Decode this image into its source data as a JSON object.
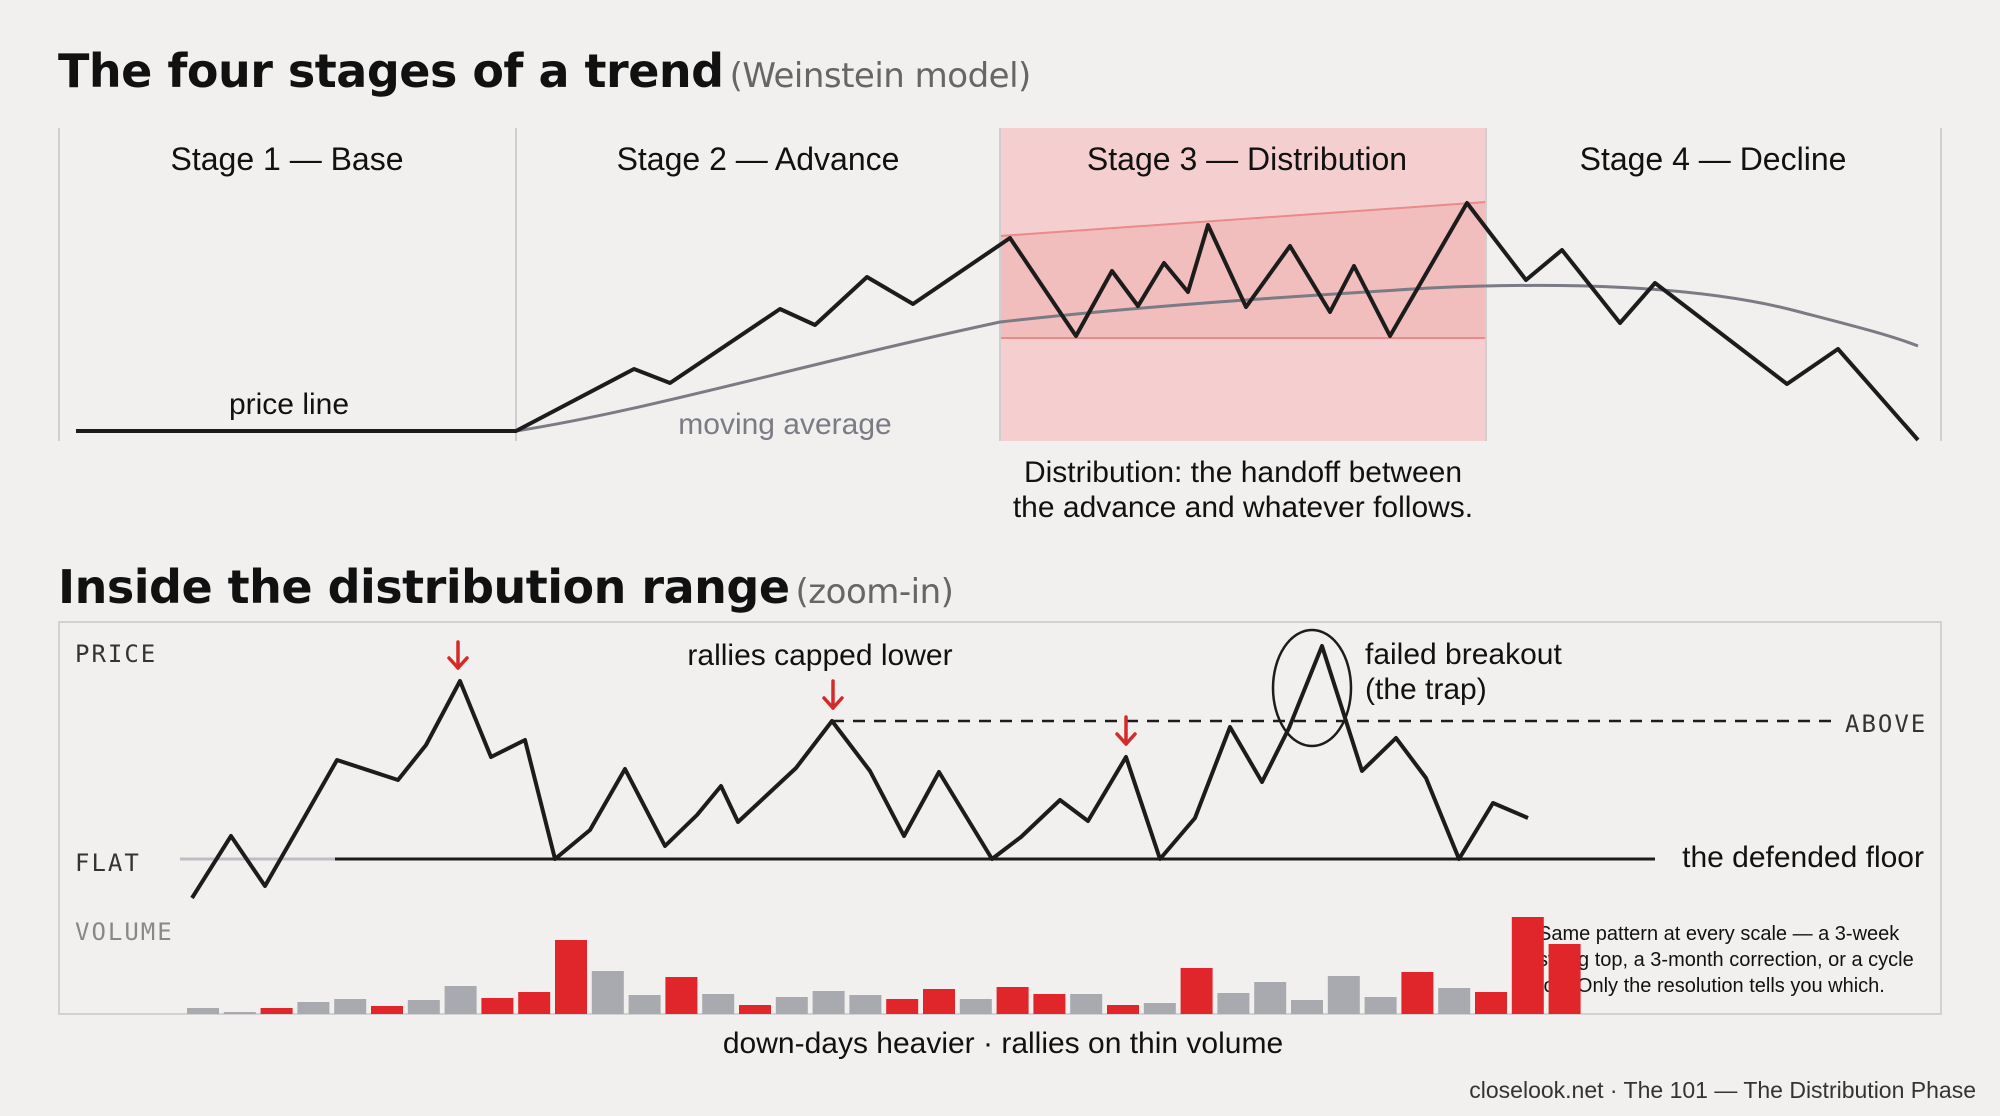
{
  "top": {
    "title": "The four stages of a trend",
    "subtitle": "(Weinstein model)",
    "stages": [
      "Stage 1 — Base",
      "Stage 2 — Advance",
      "Stage 3 — Distribution",
      "Stage 4 — Decline"
    ],
    "price_label": "price line",
    "ma_label": "moving average",
    "caption_line1": "Distribution: the handoff between",
    "caption_line2": "the advance and whatever follows.",
    "highlight_color": "#f6c9c9",
    "price_color": "#1c1c1c",
    "ma_color": "#7b7b85"
  },
  "bottom": {
    "title": "Inside the distribution range",
    "subtitle": "(zoom-in)",
    "axis_price": "PRICE",
    "axis_flat": "FLAT",
    "axis_volume": "VOLUME",
    "axis_above": "ABOVE",
    "rallies_label": "rallies capped lower",
    "failed_line1": "failed breakout",
    "failed_line2": "(the trap)",
    "floor_label": "the defended floor",
    "note_line1": "Same pattern at every scale — a 3-week",
    "note_line2": "swing top, a 3-month correction, or a cycle",
    "note_line3": "top. Only the resolution tells you which.",
    "volume_caption": "down-days heavier · rallies on thin volume",
    "down_color": "#e0262b",
    "up_color": "#a9a9b0",
    "arrow_color": "#d42a2a"
  },
  "volume_bars": [
    {
      "value": 6,
      "down": false
    },
    {
      "value": 2,
      "down": false
    },
    {
      "value": 6,
      "down": true
    },
    {
      "value": 12,
      "down": false
    },
    {
      "value": 15,
      "down": false
    },
    {
      "value": 8,
      "down": true
    },
    {
      "value": 14,
      "down": false
    },
    {
      "value": 28,
      "down": false
    },
    {
      "value": 16,
      "down": true
    },
    {
      "value": 22,
      "down": true
    },
    {
      "value": 74,
      "down": true
    },
    {
      "value": 43,
      "down": false
    },
    {
      "value": 19,
      "down": false
    },
    {
      "value": 37,
      "down": true
    },
    {
      "value": 20,
      "down": false
    },
    {
      "value": 9,
      "down": true
    },
    {
      "value": 17,
      "down": false
    },
    {
      "value": 23,
      "down": false
    },
    {
      "value": 19,
      "down": false
    },
    {
      "value": 15,
      "down": true
    },
    {
      "value": 25,
      "down": true
    },
    {
      "value": 15,
      "down": false
    },
    {
      "value": 27,
      "down": true
    },
    {
      "value": 20,
      "down": true
    },
    {
      "value": 20,
      "down": false
    },
    {
      "value": 9,
      "down": true
    },
    {
      "value": 11,
      "down": false
    },
    {
      "value": 46,
      "down": true
    },
    {
      "value": 21,
      "down": false
    },
    {
      "value": 32,
      "down": false
    },
    {
      "value": 14,
      "down": false
    },
    {
      "value": 38,
      "down": false
    },
    {
      "value": 17,
      "down": false
    },
    {
      "value": 42,
      "down": true
    },
    {
      "value": 26,
      "down": false
    },
    {
      "value": 22,
      "down": true
    },
    {
      "value": 97,
      "down": true
    },
    {
      "value": 70,
      "down": true
    }
  ],
  "footer": "closelook.net · The 101 — The Distribution Phase"
}
